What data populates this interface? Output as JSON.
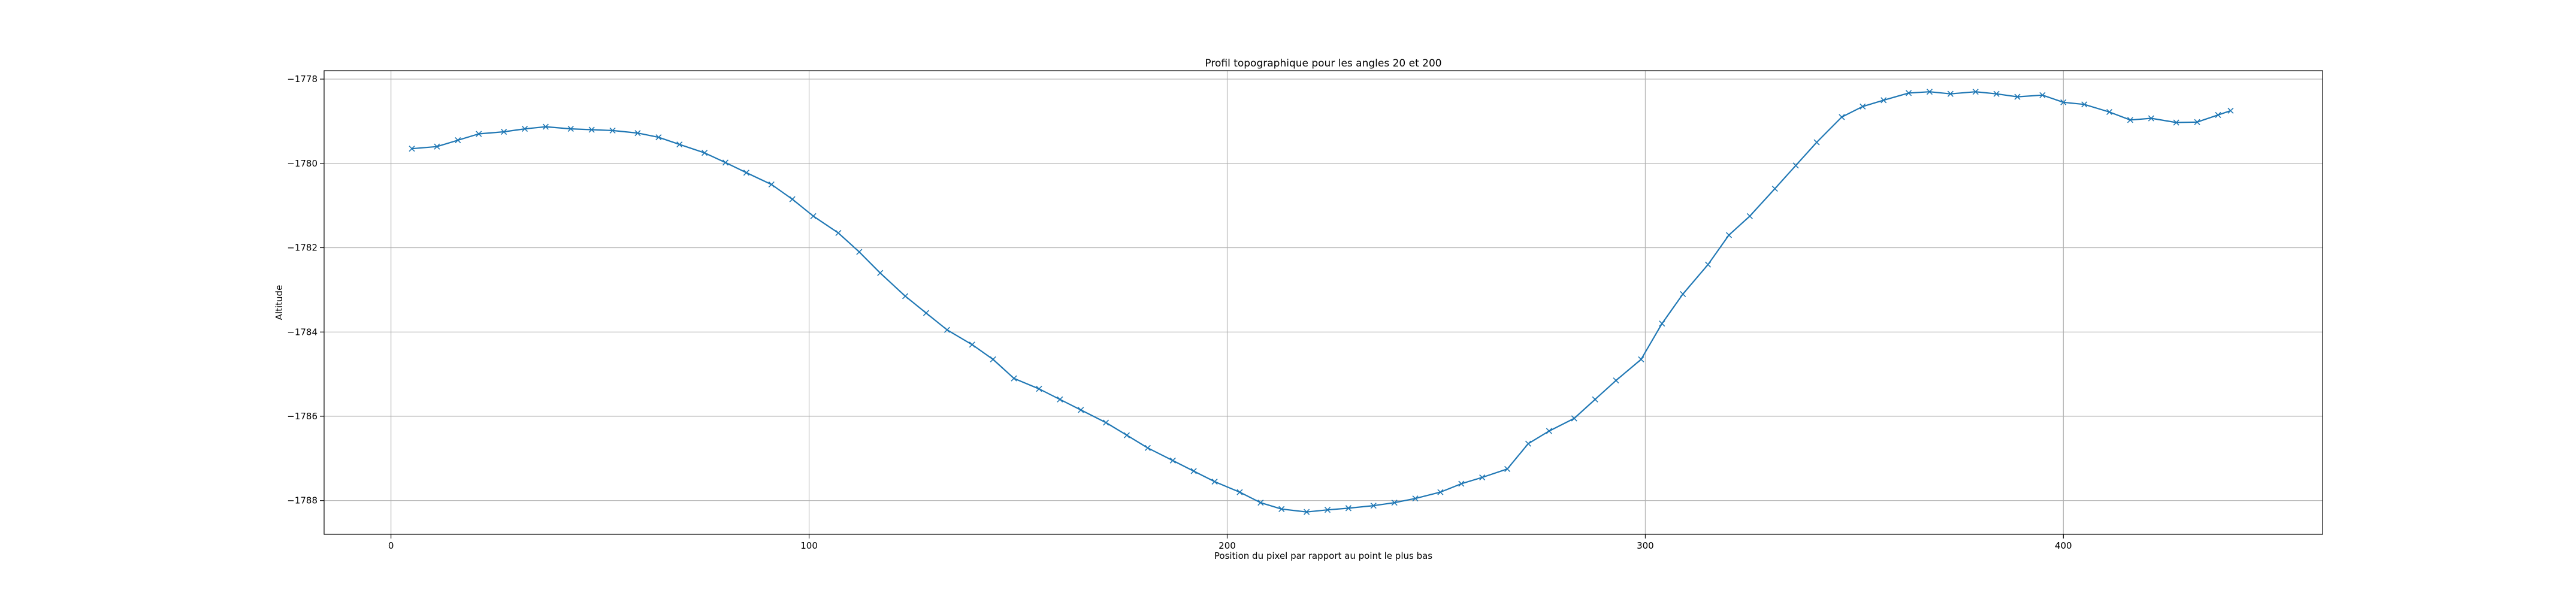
{
  "chart_data": {
    "type": "line",
    "title": "Profil topographique pour les angles 20 et 200",
    "xlabel": "Position du pixel par rapport au point le plus bas",
    "ylabel": "Altitude",
    "xlim": [
      -16,
      462
    ],
    "ylim": [
      -1788.8,
      -1777.8
    ],
    "xticks": [
      0,
      100,
      200,
      300,
      400
    ],
    "yticks": [
      -1788,
      -1786,
      -1784,
      -1782,
      -1780,
      -1778
    ],
    "grid": true,
    "marker": "x",
    "color": "#1f77b4",
    "series": [
      {
        "x": [
          5,
          11,
          16,
          21,
          27,
          32,
          37,
          43,
          48,
          53,
          59,
          64,
          69,
          75,
          80,
          85,
          91,
          96,
          101,
          107,
          112,
          117,
          123,
          128,
          133,
          139,
          144,
          149,
          155,
          160,
          165,
          171,
          176,
          181,
          187,
          192,
          197,
          203,
          208,
          213,
          219,
          224,
          229,
          235,
          240,
          245,
          251,
          256,
          261,
          267,
          272,
          277,
          283,
          288,
          293,
          299,
          304,
          309,
          315,
          320,
          325,
          331,
          336,
          341,
          347,
          352,
          357,
          363,
          368,
          373,
          379,
          384,
          389,
          395,
          400,
          405,
          411,
          416,
          421,
          427,
          432,
          437,
          440
        ],
        "y": [
          -1779.65,
          -1779.6,
          -1779.45,
          -1779.3,
          -1779.25,
          -1779.18,
          -1779.13,
          -1779.18,
          -1779.2,
          -1779.22,
          -1779.28,
          -1779.38,
          -1779.55,
          -1779.75,
          -1779.98,
          -1780.22,
          -1780.5,
          -1780.85,
          -1781.25,
          -1781.65,
          -1782.1,
          -1782.6,
          -1783.15,
          -1783.55,
          -1783.95,
          -1784.3,
          -1784.65,
          -1785.1,
          -1785.35,
          -1785.6,
          -1785.85,
          -1786.15,
          -1786.45,
          -1786.75,
          -1787.05,
          -1787.3,
          -1787.55,
          -1787.8,
          -1788.05,
          -1788.2,
          -1788.27,
          -1788.22,
          -1788.18,
          -1788.12,
          -1788.05,
          -1787.95,
          -1787.8,
          -1787.6,
          -1787.45,
          -1787.25,
          -1786.65,
          -1786.35,
          -1786.05,
          -1785.6,
          -1785.15,
          -1784.65,
          -1783.8,
          -1783.1,
          -1782.4,
          -1781.7,
          -1781.25,
          -1780.6,
          -1780.05,
          -1779.5,
          -1778.9,
          -1778.65,
          -1778.5,
          -1778.33,
          -1778.3,
          -1778.35,
          -1778.3,
          -1778.35,
          -1778.42,
          -1778.38,
          -1778.55,
          -1778.6,
          -1778.78,
          -1778.97,
          -1778.93,
          -1779.03,
          -1779.02,
          -1778.85,
          -1778.75
        ]
      }
    ]
  }
}
